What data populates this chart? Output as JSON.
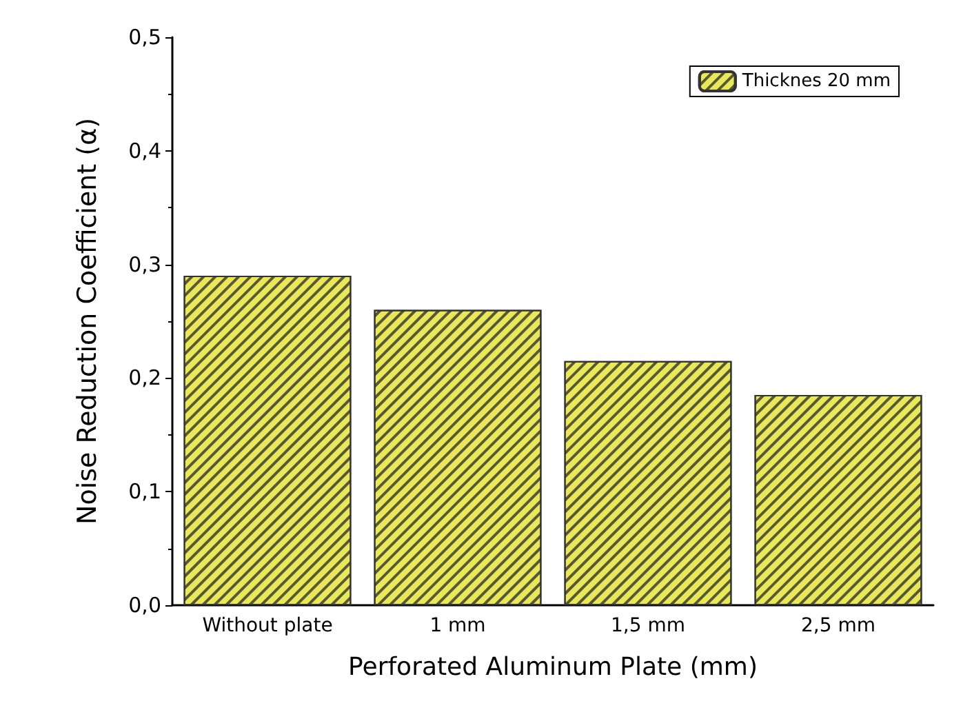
{
  "chart_data": {
    "type": "bar",
    "xlabel": "Perforated Aluminum Plate (mm)",
    "ylabel": "Noise Reduction Coefficient (α)",
    "categories": [
      "Without plate",
      "1 mm",
      "1,5 mm",
      "2,5 mm"
    ],
    "series": [
      {
        "name": "Thicknes 20 mm",
        "color": "#e8e85a",
        "values": [
          0.29,
          0.26,
          0.215,
          0.185
        ]
      }
    ],
    "ylim": [
      0,
      0.5
    ],
    "yticks": [
      {
        "value": 0,
        "label": "0,0"
      },
      {
        "value": 0.1,
        "label": "0,1"
      },
      {
        "value": 0.2,
        "label": "0,2"
      },
      {
        "value": 0.3,
        "label": "0,3"
      },
      {
        "value": 0.4,
        "label": "0,4"
      },
      {
        "value": 0.5,
        "label": "0,5"
      }
    ],
    "grid": false,
    "legend": "top right"
  }
}
